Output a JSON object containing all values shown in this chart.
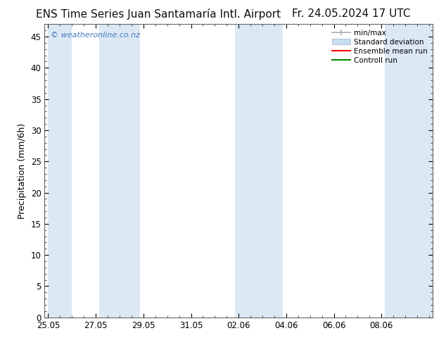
{
  "title_left": "ENS Time Series Juan Santamaría Intl. Airport",
  "title_right": "Fr. 24.05.2024 17 UTC",
  "ylabel": "Precipitation (mm/6h)",
  "ylim": [
    0,
    47
  ],
  "yticks": [
    0,
    5,
    10,
    15,
    20,
    25,
    30,
    35,
    40,
    45
  ],
  "background_color": "#ffffff",
  "shaded_color": "#dce9f5",
  "watermark": "© weatheronline.co.nz",
  "watermark_color": "#4477bb",
  "legend_entries": [
    "min/max",
    "Standard deviation",
    "Ensemble mean run",
    "Controll run"
  ],
  "minmax_color": "#aaaaaa",
  "std_color": "#c8ddf0",
  "ensemble_color": "#ff0000",
  "control_color": "#008800",
  "tick_labels": [
    "25.05",
    "27.05",
    "29.05",
    "31.05",
    "02.06",
    "04.06",
    "06.06",
    "08.06"
  ],
  "tick_positions": [
    0,
    2,
    4,
    6,
    8,
    10,
    12,
    14
  ],
  "xlim": [
    -0.15,
    16.15
  ],
  "shaded_regions": [
    [
      0,
      1
    ],
    [
      2.15,
      3.85
    ],
    [
      7.85,
      9.85
    ],
    [
      14.15,
      16.15
    ]
  ],
  "title_fontsize": 11,
  "label_fontsize": 9,
  "tick_fontsize": 8.5
}
